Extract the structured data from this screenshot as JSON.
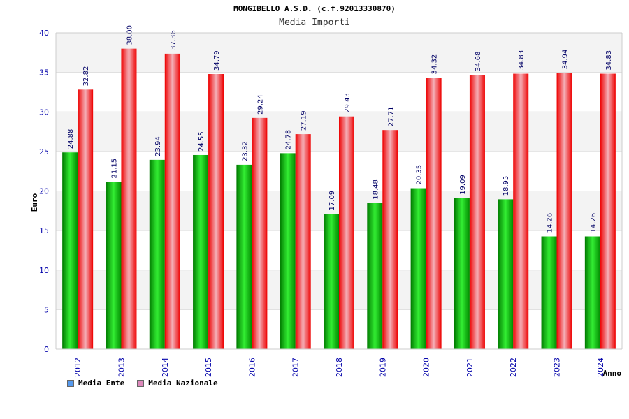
{
  "chart_data": {
    "type": "bar",
    "title": "MONGIBELLO A.S.D. (c.f.92013330870)",
    "subtitle": "Media Importi",
    "xlabel": "Anno",
    "ylabel": "Euro",
    "ylim": [
      0,
      40
    ],
    "yticks": [
      0,
      5,
      10,
      15,
      20,
      25,
      30,
      35,
      40
    ],
    "categories": [
      "2012",
      "2013",
      "2014",
      "2015",
      "2016",
      "2017",
      "2018",
      "2019",
      "2020",
      "2021",
      "2022",
      "2023",
      "2024"
    ],
    "series": [
      {
        "name": "Media Ente",
        "color": "#00aa00",
        "legend_color": "#5599ee",
        "values": [
          24.88,
          21.15,
          23.94,
          24.55,
          23.32,
          24.78,
          17.09,
          18.48,
          20.35,
          19.09,
          18.95,
          14.26,
          14.26
        ],
        "labels": [
          "24.88",
          "21.15",
          "23.94",
          "24.55",
          "23.32",
          "24.78",
          "17.09",
          "18.48",
          "20.35",
          "19.09",
          "18.95",
          "14.26",
          "14.26"
        ]
      },
      {
        "name": "Media Nazionale",
        "color": "#ee0000",
        "legend_color": "#dd88bb",
        "values": [
          32.82,
          38.0,
          37.36,
          34.79,
          29.24,
          27.19,
          29.43,
          27.71,
          34.32,
          34.68,
          34.83,
          34.94,
          34.83
        ],
        "labels": [
          "32.82",
          "38.00",
          "37.36",
          "34.79",
          "29.24",
          "27.19",
          "29.43",
          "27.71",
          "34.32",
          "34.68",
          "34.83",
          "34.94",
          "34.83"
        ]
      }
    ],
    "grid": true,
    "legend_position": "bottom-left"
  }
}
